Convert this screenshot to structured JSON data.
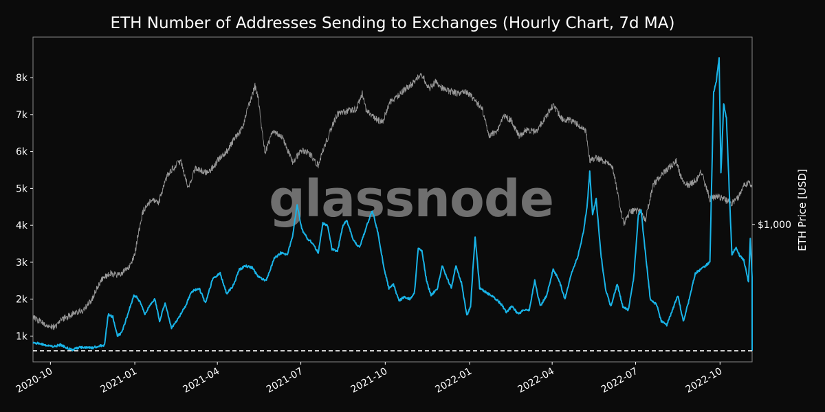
{
  "chart_data": {
    "type": "line",
    "title": "ETH Number of Addresses Sending to Exchanges (Hourly Chart, 7d MA)",
    "watermark": "glassnode",
    "xlabel": "",
    "ylabel_right": "ETH Price [USD]",
    "xlim": [
      "2020-09-12",
      "2022-11-05"
    ],
    "ylim_left": [
      300,
      9100
    ],
    "yticks_left": [
      {
        "v": 1000,
        "label": "1k"
      },
      {
        "v": 2000,
        "label": "2k"
      },
      {
        "v": 3000,
        "label": "3k"
      },
      {
        "v": 4000,
        "label": "4k"
      },
      {
        "v": 5000,
        "label": "5k"
      },
      {
        "v": 6000,
        "label": "6k"
      },
      {
        "v": 7000,
        "label": "7k"
      },
      {
        "v": 8000,
        "label": "8k"
      }
    ],
    "ylim_right_log": [
      240,
      7000
    ],
    "yticks_right": [
      {
        "v": 1000,
        "label": "$1,000"
      }
    ],
    "xticks": [
      {
        "date": "2020-10-01",
        "label": "2020-10"
      },
      {
        "date": "2021-01-01",
        "label": "2021-01"
      },
      {
        "date": "2021-04-01",
        "label": "2021-04"
      },
      {
        "date": "2021-07-01",
        "label": "2021-07"
      },
      {
        "date": "2021-10-01",
        "label": "2021-10"
      },
      {
        "date": "2022-01-01",
        "label": "2022-01"
      },
      {
        "date": "2022-04-01",
        "label": "2022-04"
      },
      {
        "date": "2022-07-01",
        "label": "2022-07"
      },
      {
        "date": "2022-10-01",
        "label": "2022-10"
      }
    ],
    "reference_line": {
      "value": 600,
      "style": "dashed",
      "color": "#ffffff"
    },
    "grid": false,
    "colors": {
      "background": "#0b0b0b",
      "addresses": "#19b4e8",
      "price": "#9a9a9a",
      "frame": "#888888"
    },
    "series": [
      {
        "axis": "left",
        "points": [
          [
            "2020-09-12",
            820
          ],
          [
            "2020-09-20",
            800
          ],
          [
            "2020-09-28",
            740
          ],
          [
            "2020-10-05",
            720
          ],
          [
            "2020-10-12",
            760
          ],
          [
            "2020-10-18",
            690
          ],
          [
            "2020-10-25",
            630
          ],
          [
            "2020-11-01",
            690
          ],
          [
            "2020-11-08",
            700
          ],
          [
            "2020-11-15",
            680
          ],
          [
            "2020-11-22",
            720
          ],
          [
            "2020-11-29",
            760
          ],
          [
            "2020-12-03",
            1580
          ],
          [
            "2020-12-08",
            1520
          ],
          [
            "2020-12-13",
            1000
          ],
          [
            "2020-12-18",
            1100
          ],
          [
            "2020-12-25",
            1650
          ],
          [
            "2020-12-31",
            2100
          ],
          [
            "2021-01-04",
            2050
          ],
          [
            "2021-01-09",
            1800
          ],
          [
            "2021-01-12",
            1600
          ],
          [
            "2021-01-18",
            1850
          ],
          [
            "2021-01-23",
            2000
          ],
          [
            "2021-01-28",
            1400
          ],
          [
            "2021-02-03",
            1900
          ],
          [
            "2021-02-10",
            1200
          ],
          [
            "2021-02-18",
            1500
          ],
          [
            "2021-02-25",
            1800
          ],
          [
            "2021-03-04",
            2200
          ],
          [
            "2021-03-12",
            2300
          ],
          [
            "2021-03-19",
            1900
          ],
          [
            "2021-03-27",
            2550
          ],
          [
            "2021-04-04",
            2700
          ],
          [
            "2021-04-11",
            2150
          ],
          [
            "2021-04-18",
            2350
          ],
          [
            "2021-04-25",
            2800
          ],
          [
            "2021-05-02",
            2900
          ],
          [
            "2021-05-09",
            2850
          ],
          [
            "2021-05-16",
            2600
          ],
          [
            "2021-05-24",
            2500
          ],
          [
            "2021-06-02",
            3100
          ],
          [
            "2021-06-09",
            3250
          ],
          [
            "2021-06-16",
            3200
          ],
          [
            "2021-06-22",
            3700
          ],
          [
            "2021-06-27",
            4550
          ],
          [
            "2021-07-02",
            3900
          ],
          [
            "2021-07-08",
            3650
          ],
          [
            "2021-07-14",
            3500
          ],
          [
            "2021-07-20",
            3250
          ],
          [
            "2021-07-25",
            4050
          ],
          [
            "2021-07-30",
            4000
          ],
          [
            "2021-08-04",
            3350
          ],
          [
            "2021-08-10",
            3300
          ],
          [
            "2021-08-16",
            4000
          ],
          [
            "2021-08-20",
            4150
          ],
          [
            "2021-08-27",
            3600
          ],
          [
            "2021-09-03",
            3400
          ],
          [
            "2021-09-11",
            4000
          ],
          [
            "2021-09-17",
            4400
          ],
          [
            "2021-09-23",
            3800
          ],
          [
            "2021-09-30",
            2800
          ],
          [
            "2021-10-05",
            2300
          ],
          [
            "2021-10-10",
            2400
          ],
          [
            "2021-10-16",
            1950
          ],
          [
            "2021-10-21",
            2050
          ],
          [
            "2021-10-28",
            2000
          ],
          [
            "2021-11-02",
            2200
          ],
          [
            "2021-11-06",
            3400
          ],
          [
            "2021-11-10",
            3300
          ],
          [
            "2021-11-15",
            2500
          ],
          [
            "2021-11-20",
            2100
          ],
          [
            "2021-11-27",
            2300
          ],
          [
            "2021-12-02",
            2900
          ],
          [
            "2021-12-07",
            2600
          ],
          [
            "2021-12-12",
            2300
          ],
          [
            "2021-12-17",
            2900
          ],
          [
            "2021-12-23",
            2450
          ],
          [
            "2021-12-29",
            1550
          ],
          [
            "2022-01-02",
            1800
          ],
          [
            "2022-01-07",
            3700
          ],
          [
            "2022-01-12",
            2300
          ],
          [
            "2022-01-18",
            2200
          ],
          [
            "2022-01-24",
            2100
          ],
          [
            "2022-01-30",
            2000
          ],
          [
            "2022-02-05",
            1850
          ],
          [
            "2022-02-10",
            1650
          ],
          [
            "2022-02-16",
            1800
          ],
          [
            "2022-02-23",
            1600
          ],
          [
            "2022-03-01",
            1700
          ],
          [
            "2022-03-07",
            1700
          ],
          [
            "2022-03-13",
            2500
          ],
          [
            "2022-03-19",
            1800
          ],
          [
            "2022-03-26",
            2100
          ],
          [
            "2022-04-02",
            2800
          ],
          [
            "2022-04-08",
            2550
          ],
          [
            "2022-04-15",
            2000
          ],
          [
            "2022-04-22",
            2700
          ],
          [
            "2022-04-29",
            3150
          ],
          [
            "2022-05-05",
            3800
          ],
          [
            "2022-05-09",
            4500
          ],
          [
            "2022-05-12",
            5450
          ],
          [
            "2022-05-15",
            4300
          ],
          [
            "2022-05-19",
            4700
          ],
          [
            "2022-05-24",
            3250
          ],
          [
            "2022-05-29",
            2300
          ],
          [
            "2022-06-04",
            1800
          ],
          [
            "2022-06-11",
            2400
          ],
          [
            "2022-06-17",
            1800
          ],
          [
            "2022-06-23",
            1700
          ],
          [
            "2022-06-29",
            2600
          ],
          [
            "2022-07-04",
            4300
          ],
          [
            "2022-07-07",
            4400
          ],
          [
            "2022-07-11",
            3400
          ],
          [
            "2022-07-17",
            2000
          ],
          [
            "2022-07-24",
            1850
          ],
          [
            "2022-07-29",
            1400
          ],
          [
            "2022-08-04",
            1300
          ],
          [
            "2022-08-10",
            1700
          ],
          [
            "2022-08-16",
            2100
          ],
          [
            "2022-08-22",
            1400
          ],
          [
            "2022-08-28",
            1950
          ],
          [
            "2022-09-04",
            2700
          ],
          [
            "2022-09-10",
            2800
          ],
          [
            "2022-09-15",
            2900
          ],
          [
            "2022-09-20",
            3000
          ],
          [
            "2022-09-24",
            7600
          ],
          [
            "2022-09-27",
            7900
          ],
          [
            "2022-09-30",
            8550
          ],
          [
            "2022-10-02",
            5400
          ],
          [
            "2022-10-05",
            7300
          ],
          [
            "2022-10-08",
            6900
          ],
          [
            "2022-10-11",
            5000
          ],
          [
            "2022-10-14",
            3200
          ],
          [
            "2022-10-18",
            3400
          ],
          [
            "2022-10-22",
            3200
          ],
          [
            "2022-10-27",
            3050
          ],
          [
            "2022-11-01",
            2450
          ],
          [
            "2022-11-03",
            3650
          ],
          [
            "2022-11-05",
            2600
          ],
          [
            "2022-11-06",
            1300
          ],
          [
            "2022-11-07",
            600
          ]
        ]
      },
      {
        "axis": "right",
        "points": [
          [
            "2020-09-12",
            380
          ],
          [
            "2020-09-20",
            365
          ],
          [
            "2020-09-25",
            350
          ],
          [
            "2020-10-05",
            345
          ],
          [
            "2020-10-15",
            375
          ],
          [
            "2020-10-25",
            395
          ],
          [
            "2020-11-05",
            410
          ],
          [
            "2020-11-15",
            455
          ],
          [
            "2020-11-25",
            560
          ],
          [
            "2020-12-05",
            600
          ],
          [
            "2020-12-15",
            590
          ],
          [
            "2020-12-25",
            640
          ],
          [
            "2021-01-01",
            730
          ],
          [
            "2021-01-10",
            1150
          ],
          [
            "2021-01-20",
            1300
          ],
          [
            "2021-01-27",
            1250
          ],
          [
            "2021-02-05",
            1650
          ],
          [
            "2021-02-12",
            1800
          ],
          [
            "2021-02-20",
            1950
          ],
          [
            "2021-02-28",
            1450
          ],
          [
            "2021-03-08",
            1800
          ],
          [
            "2021-03-15",
            1750
          ],
          [
            "2021-03-22",
            1700
          ],
          [
            "2021-04-02",
            1950
          ],
          [
            "2021-04-12",
            2150
          ],
          [
            "2021-04-20",
            2450
          ],
          [
            "2021-04-28",
            2700
          ],
          [
            "2021-05-05",
            3400
          ],
          [
            "2021-05-12",
            4200
          ],
          [
            "2021-05-16",
            3600
          ],
          [
            "2021-05-19",
            2700
          ],
          [
            "2021-05-23",
            2100
          ],
          [
            "2021-06-01",
            2650
          ],
          [
            "2021-06-10",
            2500
          ],
          [
            "2021-06-22",
            1900
          ],
          [
            "2021-07-01",
            2150
          ],
          [
            "2021-07-10",
            2100
          ],
          [
            "2021-07-20",
            1850
          ],
          [
            "2021-07-31",
            2500
          ],
          [
            "2021-08-10",
            3150
          ],
          [
            "2021-08-20",
            3250
          ],
          [
            "2021-08-30",
            3300
          ],
          [
            "2021-09-06",
            3900
          ],
          [
            "2021-09-10",
            3300
          ],
          [
            "2021-09-20",
            3000
          ],
          [
            "2021-09-28",
            2900
          ],
          [
            "2021-10-06",
            3550
          ],
          [
            "2021-10-15",
            3800
          ],
          [
            "2021-10-22",
            4050
          ],
          [
            "2021-10-30",
            4300
          ],
          [
            "2021-11-09",
            4800
          ],
          [
            "2021-11-18",
            4100
          ],
          [
            "2021-11-25",
            4400
          ],
          [
            "2021-12-04",
            4050
          ],
          [
            "2021-12-10",
            4000
          ],
          [
            "2021-12-18",
            3900
          ],
          [
            "2021-12-27",
            4000
          ],
          [
            "2022-01-05",
            3700
          ],
          [
            "2022-01-15",
            3300
          ],
          [
            "2022-01-22",
            2500
          ],
          [
            "2022-01-31",
            2650
          ],
          [
            "2022-02-07",
            3100
          ],
          [
            "2022-02-15",
            2950
          ],
          [
            "2022-02-24",
            2500
          ],
          [
            "2022-03-05",
            2700
          ],
          [
            "2022-03-14",
            2600
          ],
          [
            "2022-03-24",
            3000
          ],
          [
            "2022-04-02",
            3450
          ],
          [
            "2022-04-12",
            3000
          ],
          [
            "2022-04-22",
            2950
          ],
          [
            "2022-04-30",
            2800
          ],
          [
            "2022-05-08",
            2600
          ],
          [
            "2022-05-12",
            1950
          ],
          [
            "2022-05-20",
            2000
          ],
          [
            "2022-05-30",
            1900
          ],
          [
            "2022-06-06",
            1800
          ],
          [
            "2022-06-13",
            1250
          ],
          [
            "2022-06-18",
            1000
          ],
          [
            "2022-06-25",
            1150
          ],
          [
            "2022-07-05",
            1150
          ],
          [
            "2022-07-12",
            1050
          ],
          [
            "2022-07-20",
            1500
          ],
          [
            "2022-07-30",
            1700
          ],
          [
            "2022-08-10",
            1850
          ],
          [
            "2022-08-14",
            1950
          ],
          [
            "2022-08-20",
            1600
          ],
          [
            "2022-08-28",
            1500
          ],
          [
            "2022-09-06",
            1600
          ],
          [
            "2022-09-10",
            1750
          ],
          [
            "2022-09-15",
            1500
          ],
          [
            "2022-09-20",
            1300
          ],
          [
            "2022-09-28",
            1350
          ],
          [
            "2022-10-05",
            1300
          ],
          [
            "2022-10-13",
            1250
          ],
          [
            "2022-10-20",
            1300
          ],
          [
            "2022-10-27",
            1500
          ],
          [
            "2022-11-02",
            1550
          ],
          [
            "2022-11-05",
            1500
          ]
        ]
      }
    ]
  }
}
